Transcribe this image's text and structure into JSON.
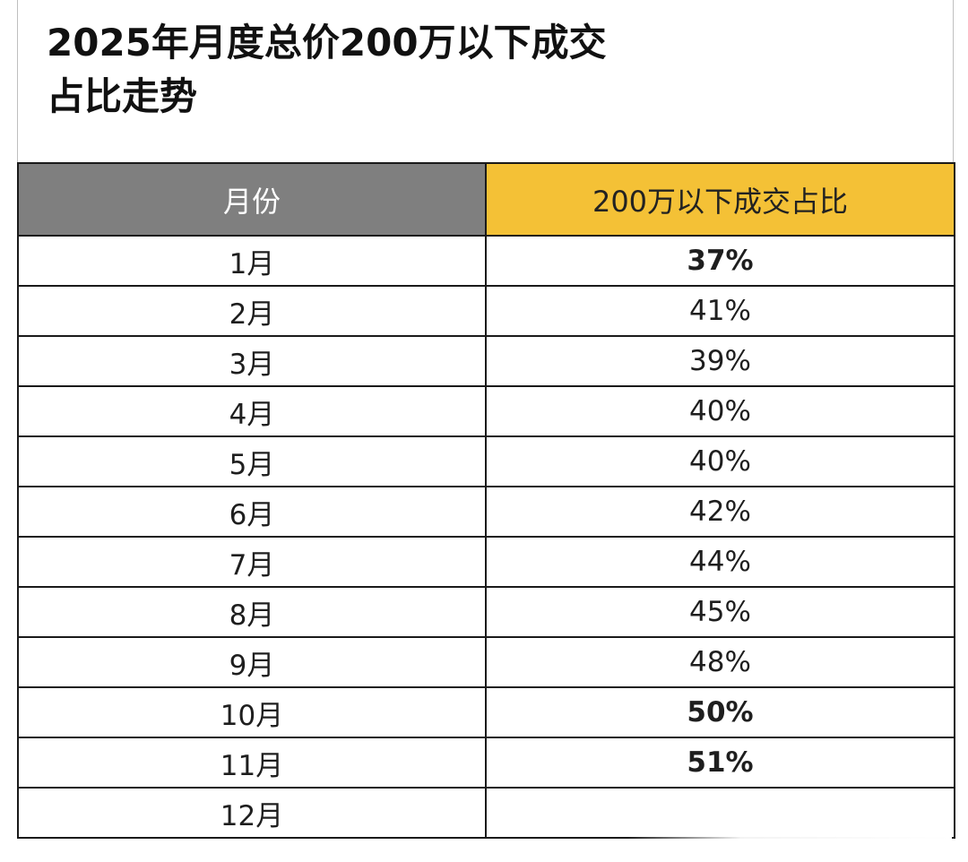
{
  "title": {
    "line1": "2025年月度总价200万以下成交",
    "line2": "占比走势"
  },
  "table": {
    "headers": {
      "month": "月份",
      "ratio": "200万以下成交占比"
    },
    "rows": [
      {
        "month": "1月",
        "ratio": "37%",
        "highlight": true
      },
      {
        "month": "2月",
        "ratio": "41%",
        "highlight": false
      },
      {
        "month": "3月",
        "ratio": "39%",
        "highlight": false
      },
      {
        "month": "4月",
        "ratio": "40%",
        "highlight": false
      },
      {
        "month": "5月",
        "ratio": "40%",
        "highlight": false
      },
      {
        "month": "6月",
        "ratio": "42%",
        "highlight": false
      },
      {
        "month": "7月",
        "ratio": "44%",
        "highlight": false
      },
      {
        "month": "8月",
        "ratio": "45%",
        "highlight": false
      },
      {
        "month": "9月",
        "ratio": "48%",
        "highlight": false
      },
      {
        "month": "10月",
        "ratio": "50%",
        "highlight": true
      },
      {
        "month": "11月",
        "ratio": "51%",
        "highlight": true
      },
      {
        "month": "12月",
        "ratio": "",
        "highlight": false
      }
    ]
  },
  "colors": {
    "header_month_bg": "#7f7f7f",
    "header_ratio_bg": "#f4c136",
    "highlight_text": "#c8272d"
  }
}
